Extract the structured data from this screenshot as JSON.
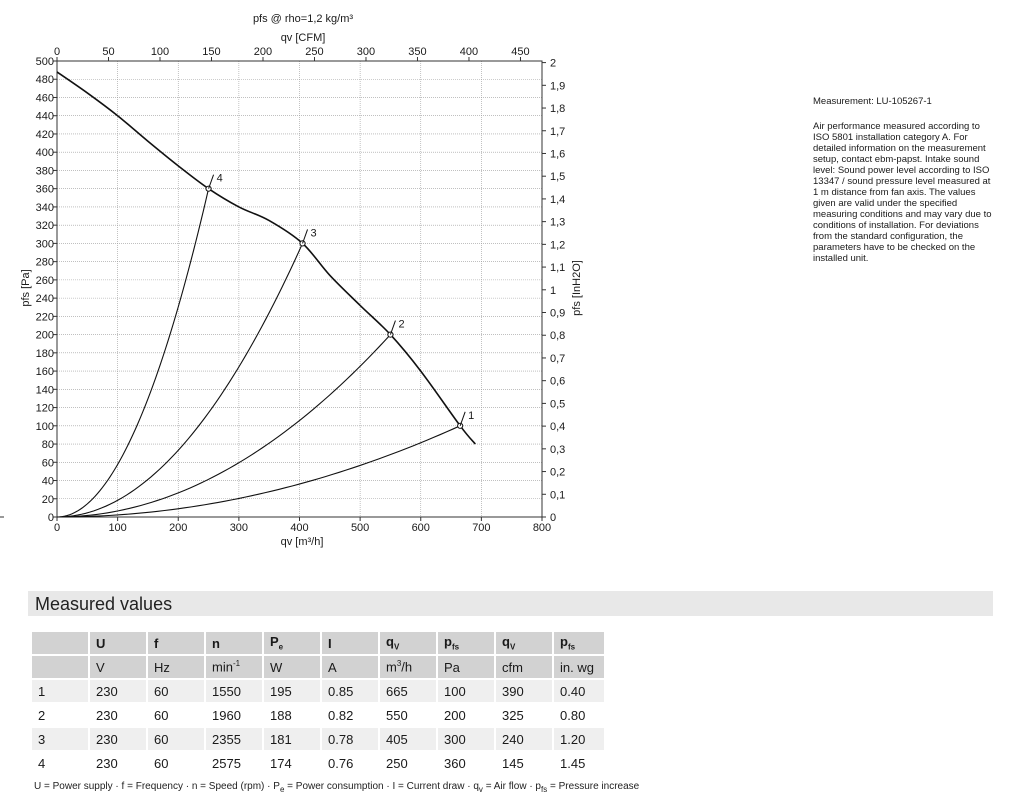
{
  "chart_data": {
    "type": "line",
    "title": "pfs @ rho=1,2 kg/m³",
    "xlabel": "qv [m³/h]",
    "x2label": "qv [CFM]",
    "ylabel": "pfs [Pa]",
    "y2label": "pfs [InH2O]",
    "xlim": [
      0,
      800
    ],
    "x2lim": [
      0,
      470.9
    ],
    "ylim": [
      0,
      500
    ],
    "y2lim": [
      0,
      2.007
    ],
    "x_ticks": [
      "0",
      "100",
      "200",
      "300",
      "400",
      "500",
      "600",
      "700",
      "800"
    ],
    "x2_ticks": [
      "0",
      "50",
      "100",
      "150",
      "200",
      "250",
      "300",
      "350",
      "400",
      "450"
    ],
    "y_ticks": [
      "0",
      "20",
      "40",
      "60",
      "80",
      "100",
      "120",
      "140",
      "160",
      "180",
      "200",
      "220",
      "240",
      "260",
      "280",
      "300",
      "320",
      "340",
      "360",
      "380",
      "400",
      "420",
      "440",
      "460",
      "480",
      "500"
    ],
    "y2_ticks": [
      "0",
      "0,1",
      "0,2",
      "0,3",
      "0,4",
      "0,5",
      "0,6",
      "0,7",
      "0,8",
      "0,9",
      "1",
      "1,1",
      "1,2",
      "1,3",
      "1,4",
      "1,5",
      "1,6",
      "1,7",
      "1,8",
      "1,9",
      "2"
    ],
    "grid": true,
    "series": [
      {
        "kind": "fan_curve",
        "x": [
          0,
          50,
          100,
          150,
          200,
          250,
          300,
          350,
          405,
          450,
          500,
          550,
          600,
          665,
          690
        ],
        "y": [
          488,
          465,
          440,
          412,
          385,
          360,
          340,
          325,
          300,
          265,
          232,
          200,
          160,
          100,
          80
        ]
      },
      {
        "kind": "system_curve",
        "label": "1",
        "point": [
          665,
          100
        ]
      },
      {
        "kind": "system_curve",
        "label": "2",
        "point": [
          550,
          200
        ]
      },
      {
        "kind": "system_curve",
        "label": "3",
        "point": [
          405,
          300
        ]
      },
      {
        "kind": "system_curve",
        "label": "4",
        "point": [
          250,
          360
        ]
      }
    ]
  },
  "side_note": {
    "measurement": "Measurement: LU-105267-1",
    "text": "Air performance measured according to ISO 5801 installation category A. For detailed information on the measurement setup, contact ebm-papst. Intake sound level: Sound power level according to ISO 13347 / sound pressure level measured at 1 m distance from fan axis. The values given are valid under the specified measuring conditions and may vary due to conditions of installation. For deviations from the standard configuration, the parameters have to be checked on the installed unit."
  },
  "measured": {
    "title": "Measured values",
    "headers": [
      "U",
      "f",
      "n",
      "Pe",
      "I",
      "qV",
      "pfs",
      "qV",
      "pfs"
    ],
    "units": [
      "V",
      "Hz",
      "min-1",
      "W",
      "A",
      "m3/h",
      "Pa",
      "cfm",
      "in. wg"
    ],
    "rows": [
      [
        "1",
        "230",
        "60",
        "1550",
        "195",
        "0.85",
        "665",
        "100",
        "390",
        "0.40"
      ],
      [
        "2",
        "230",
        "60",
        "1960",
        "188",
        "0.82",
        "550",
        "200",
        "325",
        "0.80"
      ],
      [
        "3",
        "230",
        "60",
        "2355",
        "181",
        "0.78",
        "405",
        "300",
        "240",
        "1.20"
      ],
      [
        "4",
        "230",
        "60",
        "2575",
        "174",
        "0.76",
        "250",
        "360",
        "145",
        "1.45"
      ]
    ],
    "legend": "U = Power supply · f = Frequency · n = Speed (rpm) · Pe = Power consumption · I = Current draw · qv = Air flow · pfs = Pressure increase"
  }
}
